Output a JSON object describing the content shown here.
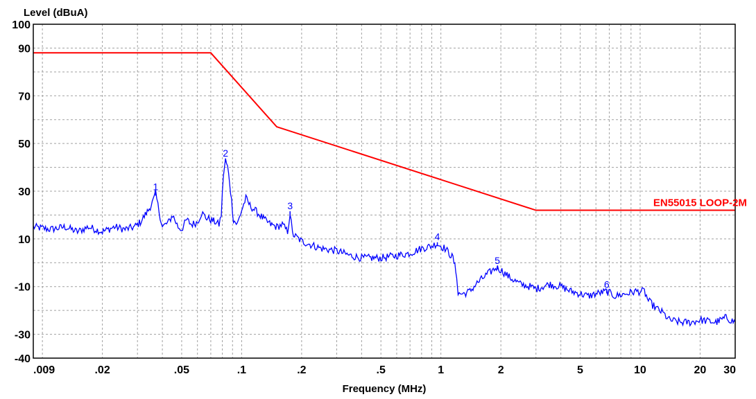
{
  "chart_data": {
    "type": "line",
    "title": "",
    "ylabel": "Level (dBuA)",
    "xlabel": "Frequency (MHz)",
    "x_scale": "log",
    "xlim": [
      0.009,
      30
    ],
    "ylim": [
      -40,
      100
    ],
    "grid": true,
    "colors": {
      "limit": "#ff0000",
      "measurement": "#0000ff",
      "grid": "#a0a0a0",
      "frame": "#000000"
    },
    "y_ticks": [
      {
        "value": 100,
        "label": "100"
      },
      {
        "value": 90,
        "label": "90"
      },
      {
        "value": 70,
        "label": "70"
      },
      {
        "value": 50,
        "label": "50"
      },
      {
        "value": 30,
        "label": "30"
      },
      {
        "value": 10,
        "label": "10"
      },
      {
        "value": -10,
        "label": "-10"
      },
      {
        "value": -30,
        "label": "-30"
      },
      {
        "value": -40,
        "label": "-40"
      }
    ],
    "x_ticks": [
      {
        "value": 0.009,
        "label": ".009"
      },
      {
        "value": 0.02,
        "label": ".02"
      },
      {
        "value": 0.05,
        "label": ".05"
      },
      {
        "value": 0.1,
        "label": ".1"
      },
      {
        "value": 0.2,
        "label": ".2"
      },
      {
        "value": 0.5,
        "label": ".5"
      },
      {
        "value": 1,
        "label": "1"
      },
      {
        "value": 2,
        "label": "2"
      },
      {
        "value": 5,
        "label": "5"
      },
      {
        "value": 10,
        "label": "10"
      },
      {
        "value": 20,
        "label": "20"
      },
      {
        "value": 30,
        "label": "30"
      }
    ],
    "x_gridlines": [
      0.01,
      0.02,
      0.03,
      0.04,
      0.05,
      0.06,
      0.07,
      0.08,
      0.09,
      0.1,
      0.2,
      0.3,
      0.4,
      0.5,
      0.6,
      0.7,
      0.8,
      0.9,
      1,
      2,
      3,
      4,
      5,
      6,
      7,
      8,
      9,
      10,
      20
    ],
    "y_gridlines": [
      90,
      80,
      70,
      60,
      50,
      40,
      30,
      20,
      10,
      0,
      -10,
      -20,
      -30
    ],
    "series": [
      {
        "name": "EN55015 LOOP-2M",
        "values_xy": [
          [
            0.009,
            88
          ],
          [
            0.07,
            88
          ],
          [
            0.15,
            57
          ],
          [
            3,
            22
          ],
          [
            30,
            22
          ]
        ]
      },
      {
        "values_xy": [
          [
            0.009,
            15
          ],
          [
            0.011,
            14
          ],
          [
            0.013,
            15
          ],
          [
            0.015,
            13
          ],
          [
            0.017,
            15
          ],
          [
            0.02,
            13
          ],
          [
            0.023,
            15
          ],
          [
            0.026,
            14
          ],
          [
            0.029,
            15
          ],
          [
            0.031,
            17
          ],
          [
            0.034,
            22
          ],
          [
            0.036,
            26
          ],
          [
            0.037,
            29
          ],
          [
            0.038,
            24
          ],
          [
            0.04,
            15
          ],
          [
            0.043,
            17
          ],
          [
            0.045,
            20
          ],
          [
            0.048,
            15
          ],
          [
            0.05,
            14
          ],
          [
            0.053,
            18
          ],
          [
            0.056,
            16
          ],
          [
            0.06,
            17
          ],
          [
            0.063,
            21
          ],
          [
            0.066,
            19
          ],
          [
            0.07,
            18
          ],
          [
            0.074,
            17
          ],
          [
            0.077,
            16
          ],
          [
            0.079,
            20
          ],
          [
            0.081,
            37
          ],
          [
            0.083,
            43
          ],
          [
            0.085,
            40
          ],
          [
            0.087,
            34
          ],
          [
            0.089,
            26
          ],
          [
            0.091,
            18
          ],
          [
            0.095,
            16
          ],
          [
            0.1,
            22
          ],
          [
            0.105,
            27
          ],
          [
            0.11,
            24
          ],
          [
            0.12,
            21
          ],
          [
            0.13,
            18
          ],
          [
            0.14,
            16
          ],
          [
            0.15,
            15
          ],
          [
            0.16,
            16
          ],
          [
            0.17,
            13
          ],
          [
            0.175,
            21
          ],
          [
            0.18,
            12
          ],
          [
            0.2,
            9
          ],
          [
            0.25,
            6
          ],
          [
            0.3,
            5
          ],
          [
            0.35,
            3
          ],
          [
            0.4,
            2
          ],
          [
            0.5,
            2
          ],
          [
            0.6,
            3
          ],
          [
            0.7,
            4
          ],
          [
            0.8,
            6
          ],
          [
            0.9,
            7
          ],
          [
            0.95,
            8
          ],
          [
            1.05,
            6
          ],
          [
            1.15,
            2
          ],
          [
            1.2,
            -5
          ],
          [
            1.22,
            -13
          ],
          [
            1.3,
            -13
          ],
          [
            1.4,
            -12
          ],
          [
            1.5,
            -9
          ],
          [
            1.7,
            -5
          ],
          [
            1.9,
            -2
          ],
          [
            2,
            -3
          ],
          [
            2.2,
            -6
          ],
          [
            2.5,
            -9
          ],
          [
            2.8,
            -10
          ],
          [
            3,
            -11
          ],
          [
            3.5,
            -9
          ],
          [
            4,
            -10
          ],
          [
            4.5,
            -12
          ],
          [
            5,
            -13
          ],
          [
            5.5,
            -14
          ],
          [
            6,
            -13
          ],
          [
            6.8,
            -12
          ],
          [
            7.5,
            -14
          ],
          [
            8.5,
            -13
          ],
          [
            9.5,
            -12
          ],
          [
            10.5,
            -12
          ],
          [
            11,
            -16
          ],
          [
            12,
            -19
          ],
          [
            13,
            -21
          ],
          [
            14,
            -24
          ],
          [
            16,
            -25
          ],
          [
            18,
            -25
          ],
          [
            20,
            -24
          ],
          [
            24,
            -25
          ],
          [
            27,
            -23
          ],
          [
            30,
            -25
          ]
        ]
      }
    ],
    "markers": [
      {
        "label": "1",
        "x": 0.037,
        "y": 29
      },
      {
        "label": "2",
        "x": 0.083,
        "y": 43
      },
      {
        "label": "3",
        "x": 0.175,
        "y": 21
      },
      {
        "label": "4",
        "x": 0.96,
        "y": 8
      },
      {
        "label": "5",
        "x": 1.92,
        "y": -2
      },
      {
        "label": "6",
        "x": 6.8,
        "y": -12
      }
    ],
    "series_label": {
      "text": "EN55015 LOOP-2M",
      "x": 20,
      "y": 22
    }
  }
}
